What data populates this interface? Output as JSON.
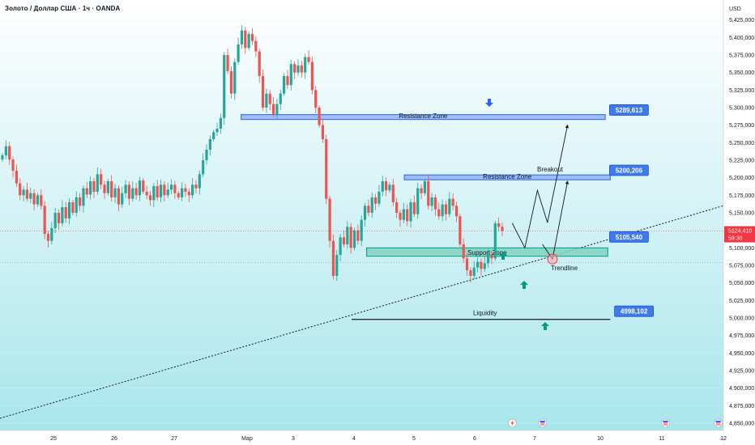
{
  "header": {
    "title": "Золото / Доллар США · 1ч · OANDA"
  },
  "colors": {
    "bg_top": "#ffffff",
    "bg_bottom": "#a8e6ec",
    "bull": "#26a69a",
    "bear": "#ef5350",
    "zone_blue_fill": "#90b4f3",
    "zone_blue_stroke": "#2962ff",
    "zone_green_fill": "#7fd3c0",
    "zone_green_stroke": "#089981",
    "arrow_blue": "#2962ff",
    "arrow_green": "#089981",
    "label_blue": "#3d7be8",
    "current_price": "#f23645"
  },
  "chart_data": {
    "type": "candlestick",
    "currency_label": "USD",
    "ylim": [
      4840,
      5450
    ],
    "y_ticks": [
      "5,425,000",
      "5,400,000",
      "5,375,000",
      "5,350,000",
      "5,325,000",
      "5,300,000",
      "5,275,000",
      "5,250,000",
      "5,225,000",
      "5,200,000",
      "5,175,000",
      "5,150,000",
      "5,125,000",
      "5,100,000",
      "5,075,000",
      "5,050,000",
      "5,025,000",
      "5,000,000",
      "4,975,000",
      "4,950,000",
      "4,925,000",
      "4,900,000",
      "4,875,000",
      "4,850,000"
    ],
    "y_tick_values": [
      5425,
      5400,
      5375,
      5350,
      5325,
      5300,
      5275,
      5250,
      5225,
      5200,
      5175,
      5150,
      5125,
      5100,
      5075,
      5050,
      5025,
      5000,
      4975,
      4950,
      4925,
      4900,
      4875,
      4850
    ],
    "x_ticks": [
      {
        "label": "25",
        "t": 44
      },
      {
        "label": "26",
        "t": 68
      },
      {
        "label": "27",
        "t": 92
      },
      {
        "label": "Мар",
        "t": 116
      },
      {
        "label": "3",
        "t": 140
      },
      {
        "label": "4",
        "t": 164
      },
      {
        "label": "5",
        "t": 188
      },
      {
        "label": "6",
        "t": 212
      },
      {
        "label": "7",
        "t": 236
      },
      {
        "label": "10",
        "t": 260
      },
      {
        "label": "11",
        "t": 284
      },
      {
        "label": "12",
        "t": 308
      }
    ],
    "x_domain": [
      20,
      308
    ],
    "closes": [
      5232,
      5245,
      5226,
      5210,
      5192,
      5175,
      5183,
      5170,
      5178,
      5162,
      5175,
      5160,
      5120,
      5110,
      5128,
      5150,
      5135,
      5158,
      5142,
      5165,
      5150,
      5172,
      5160,
      5185,
      5176,
      5195,
      5180,
      5205,
      5190,
      5178,
      5195,
      5172,
      5185,
      5162,
      5178,
      5190,
      5170,
      5185,
      5175,
      5196,
      5180,
      5175,
      5168,
      5188,
      5172,
      5190,
      5175,
      5183,
      5190,
      5178,
      5172,
      5185,
      5180,
      5175,
      5190,
      5185,
      5205,
      5225,
      5240,
      5255,
      5265,
      5270,
      5285,
      5375,
      5352,
      5320,
      5365,
      5390,
      5410,
      5385,
      5405,
      5395,
      5380,
      5345,
      5300,
      5320,
      5305,
      5290,
      5305,
      5320,
      5345,
      5332,
      5362,
      5350,
      5360,
      5350,
      5372,
      5365,
      5325,
      5300,
      5275,
      5255,
      5170,
      5110,
      5060,
      5090,
      5115,
      5105,
      5130,
      5100,
      5125,
      5110,
      5140,
      5160,
      5150,
      5172,
      5163,
      5180,
      5195,
      5182,
      5190,
      5165,
      5150,
      5140,
      5155,
      5138,
      5165,
      5148,
      5185,
      5178,
      5195,
      5160,
      5172,
      5155,
      5145,
      5162,
      5148,
      5170,
      5160,
      5145,
      5105,
      5085,
      5068,
      5060,
      5072,
      5080,
      5070,
      5078,
      5090,
      5085,
      5135,
      5130,
      5124
    ],
    "highs_above": 7,
    "lows_below": 7,
    "resistance_upper": {
      "low": 5283,
      "high": 5290,
      "t0": 116,
      "t1": 261,
      "label": "Resistance Zone"
    },
    "resistance_lower": {
      "low": 5197,
      "high": 5204,
      "t0": 181,
      "t1": 263,
      "label": "Resistance Zone"
    },
    "support_zone": {
      "low": 5088,
      "high": 5100,
      "t0": 166,
      "t1": 262,
      "label": "Support Zone"
    },
    "liquidity": {
      "price": 4998,
      "t0": 160,
      "t1": 263,
      "label": "Liquidity"
    },
    "trendline": {
      "p1": [
        20,
        4857
      ],
      "p2": [
        308,
        5160
      ],
      "label": "Trendline"
    },
    "breakout_label": "Breakout",
    "price_labels": [
      {
        "text": "5289,613",
        "price": 5296,
        "t": 264
      },
      {
        "text": "5200,206",
        "price": 5210,
        "t": 264
      },
      {
        "text": "5105,540",
        "price": 5115,
        "t": 264
      },
      {
        "text": "4998,102",
        "price": 5009,
        "t": 266
      }
    ],
    "projections": [
      [
        [
          224,
          5135
        ],
        [
          229,
          5100
        ],
        [
          234,
          5182
        ],
        [
          238,
          5136
        ],
        [
          246,
          5275
        ]
      ],
      [
        [
          236,
          5105
        ],
        [
          240,
          5084
        ],
        [
          246,
          5195
        ]
      ]
    ],
    "current_price": {
      "price": 5124,
      "value": "5124,410",
      "countdown": "59:30"
    },
    "dashed_level": 5079,
    "event_markers": [
      {
        "t": 224,
        "kind": "bolt"
      },
      {
        "t": 236,
        "kind": "flag"
      },
      {
        "t": 285,
        "kind": "flag"
      },
      {
        "t": 306,
        "kind": "flag"
      }
    ]
  }
}
